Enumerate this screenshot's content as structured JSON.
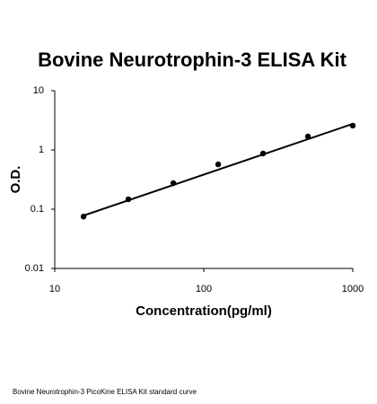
{
  "chart_data": {
    "type": "scatter",
    "title": "Bovine Neurotrophin-3 ELISA Kit",
    "x_label": "Concentration(pg/ml)",
    "y_label": "O.D.",
    "caption": "Bovine Neurotrophin-3 PicoKine ELISA Kit standard curve",
    "x_log": true,
    "y_log": true,
    "grid": false,
    "xlim": [
      10,
      1000
    ],
    "ylim": [
      0.01,
      10
    ],
    "xticks": [
      10,
      100,
      1000
    ],
    "yticks": [
      0.01,
      0.1,
      1,
      10
    ],
    "series": [
      {
        "kind": "points",
        "color": "#000000",
        "x": [
          15.6,
          31.2,
          62.5,
          125,
          250,
          500,
          1000
        ],
        "values": [
          0.075,
          0.147,
          0.275,
          0.57,
          0.87,
          1.69,
          2.57
        ]
      },
      {
        "kind": "line",
        "color": "#000000",
        "x": [
          15.6,
          1000
        ],
        "values": [
          0.078,
          2.75
        ]
      }
    ]
  }
}
